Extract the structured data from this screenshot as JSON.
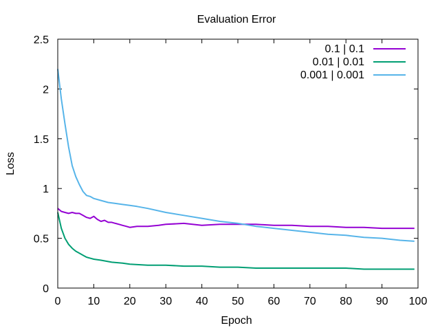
{
  "chart_data": {
    "type": "line",
    "title": "Evaluation Error",
    "xlabel": "Epoch",
    "ylabel": "Loss",
    "xlim": [
      0,
      100
    ],
    "ylim": [
      0,
      2.5
    ],
    "xticks": [
      0,
      10,
      20,
      30,
      40,
      50,
      60,
      70,
      80,
      90,
      100
    ],
    "yticks": [
      0,
      0.5,
      1,
      1.5,
      2,
      2.5
    ],
    "xtick_labels": [
      "0",
      "10",
      "20",
      "30",
      "40",
      "50",
      "60",
      "70",
      "80",
      "90",
      "100"
    ],
    "ytick_labels": [
      "0",
      "0.5",
      "1",
      "1.5",
      "2",
      "2.5"
    ],
    "grid": false,
    "legend_position": "top-right",
    "series": [
      {
        "name": "0.1 | 0.1",
        "color": "#9400d3",
        "x": [
          0,
          1,
          2,
          3,
          4,
          5,
          6,
          7,
          8,
          9,
          10,
          11,
          12,
          13,
          14,
          15,
          16,
          17,
          18,
          19,
          20,
          22,
          25,
          28,
          30,
          35,
          40,
          45,
          50,
          55,
          60,
          65,
          70,
          75,
          80,
          85,
          90,
          95,
          99
        ],
        "y": [
          0.8,
          0.77,
          0.76,
          0.75,
          0.76,
          0.75,
          0.75,
          0.73,
          0.71,
          0.7,
          0.72,
          0.69,
          0.67,
          0.68,
          0.66,
          0.66,
          0.65,
          0.64,
          0.63,
          0.62,
          0.61,
          0.62,
          0.62,
          0.63,
          0.64,
          0.65,
          0.63,
          0.64,
          0.64,
          0.64,
          0.63,
          0.63,
          0.62,
          0.62,
          0.61,
          0.61,
          0.6,
          0.6,
          0.6
        ]
      },
      {
        "name": "0.01 | 0.01",
        "color": "#009e73",
        "x": [
          0,
          1,
          2,
          3,
          4,
          5,
          6,
          7,
          8,
          9,
          10,
          12,
          15,
          18,
          20,
          25,
          30,
          35,
          40,
          45,
          50,
          55,
          60,
          65,
          70,
          75,
          80,
          85,
          90,
          95,
          99
        ],
        "y": [
          0.76,
          0.6,
          0.5,
          0.44,
          0.4,
          0.37,
          0.35,
          0.33,
          0.31,
          0.3,
          0.29,
          0.28,
          0.26,
          0.25,
          0.24,
          0.23,
          0.23,
          0.22,
          0.22,
          0.21,
          0.21,
          0.2,
          0.2,
          0.2,
          0.2,
          0.2,
          0.2,
          0.19,
          0.19,
          0.19,
          0.19
        ]
      },
      {
        "name": "0.001 | 0.001",
        "color": "#56b4e9",
        "x": [
          0,
          1,
          2,
          3,
          4,
          5,
          6,
          7,
          8,
          9,
          10,
          12,
          14,
          16,
          18,
          20,
          22,
          25,
          30,
          35,
          40,
          45,
          50,
          55,
          60,
          65,
          70,
          75,
          80,
          85,
          90,
          95,
          99
        ],
        "y": [
          2.2,
          1.9,
          1.65,
          1.42,
          1.23,
          1.12,
          1.04,
          0.97,
          0.93,
          0.92,
          0.9,
          0.88,
          0.86,
          0.85,
          0.84,
          0.83,
          0.82,
          0.8,
          0.76,
          0.73,
          0.7,
          0.67,
          0.65,
          0.62,
          0.6,
          0.58,
          0.56,
          0.54,
          0.53,
          0.51,
          0.5,
          0.48,
          0.47
        ]
      }
    ]
  }
}
